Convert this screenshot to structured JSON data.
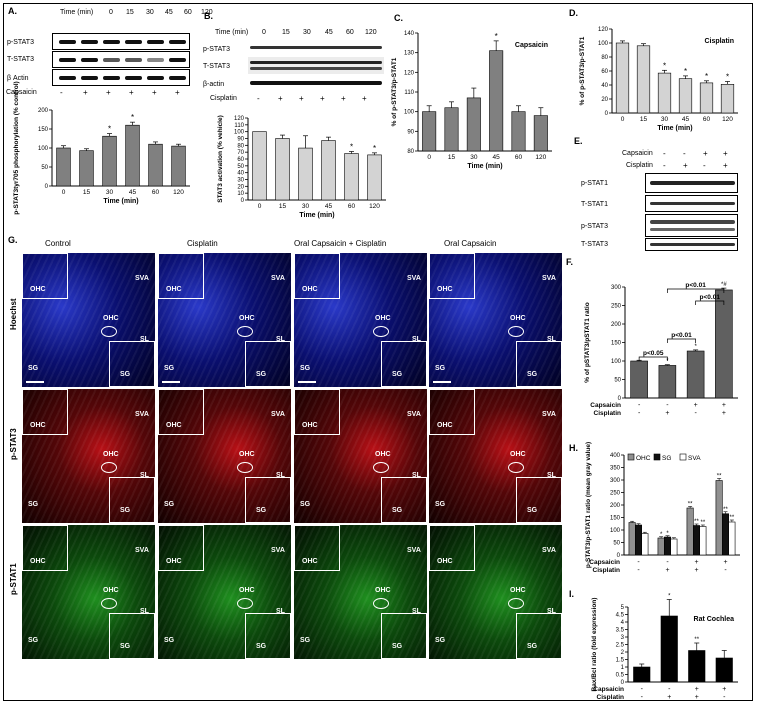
{
  "panel_labels": {
    "A": "A.",
    "B": "B.",
    "C": "C.",
    "D": "D.",
    "E": "E.",
    "F": "F.",
    "G": "G.",
    "H": "H.",
    "I": "I."
  },
  "blot_labels": {
    "time_min": "Time (min)",
    "a_rows": [
      "p-STAT3",
      "T-STAT3",
      "β Actin",
      "Capsaicin"
    ],
    "b_rows": [
      "p-STAT3",
      "T-STAT3",
      "β-actin",
      "Cisplatin"
    ],
    "e_rows": [
      "p-STAT1",
      "T-STAT1",
      "p-STAT3",
      "T-STAT3"
    ],
    "e_cond": [
      "Capsaicin",
      "Cisplatin"
    ]
  },
  "time_points": [
    "0",
    "15",
    "30",
    "45",
    "60",
    "120"
  ],
  "signs": {
    "a": [
      "-",
      "+",
      "+",
      "+",
      "+",
      "+"
    ],
    "b": [
      "-",
      "+",
      "+",
      "+",
      "+",
      "+"
    ],
    "e_caps": [
      "-",
      "-",
      "+",
      "+"
    ],
    "e_cis": [
      "-",
      "+",
      "-",
      "+"
    ]
  },
  "micro": {
    "columns": [
      "Control",
      "Cisplatin",
      "Oral Capsaicin + Cisplatin",
      "Oral Capsaicin"
    ],
    "rows": [
      "Hoechst",
      "p-STAT3",
      "p-STAT1"
    ],
    "labels": {
      "ohc": "OHC",
      "sva": "SVA",
      "sl": "SL",
      "sg": "SG"
    }
  },
  "chart_data": [
    {
      "id": "A",
      "type": "bar",
      "categories": [
        "0",
        "15",
        "30",
        "45",
        "60",
        "120"
      ],
      "values": [
        100,
        93,
        131,
        160,
        110,
        105
      ],
      "errors": [
        6,
        5,
        7,
        8,
        6,
        5
      ],
      "ylabel": "p-STAT3tyr705 phosphorylation (% control)",
      "xlabel": "Time (min)",
      "ylim": [
        0,
        200
      ],
      "yticks": [
        0,
        50,
        100,
        150,
        200
      ],
      "stars": [
        "",
        "",
        "*",
        "*",
        "",
        ""
      ],
      "color": "#808080"
    },
    {
      "id": "B",
      "type": "bar",
      "categories": [
        "0",
        "15",
        "30",
        "45",
        "60",
        "120"
      ],
      "values": [
        100,
        90,
        76,
        87,
        68,
        66
      ],
      "errors": [
        0,
        5,
        18,
        5,
        3,
        3
      ],
      "ylabel": "STAT3 activation (% vehicle)",
      "xlabel": "Time (min)",
      "ylim": [
        0,
        120
      ],
      "yticks": [
        0,
        10,
        20,
        30,
        40,
        50,
        60,
        70,
        80,
        90,
        100,
        110,
        120
      ],
      "stars": [
        "",
        "",
        "",
        "",
        "*",
        "*"
      ],
      "color": "#d3d3d3"
    },
    {
      "id": "C",
      "type": "bar",
      "categories": [
        "0",
        "15",
        "30",
        "45",
        "60",
        "120"
      ],
      "values": [
        100,
        102,
        107,
        131,
        100,
        98
      ],
      "errors": [
        3,
        3,
        5,
        5,
        3,
        4
      ],
      "ylabel": "% of p-STAT3/p-STAT1",
      "xlabel": "Time (min)",
      "title": "Capsaicin",
      "ylim": [
        80,
        140
      ],
      "yticks": [
        80,
        90,
        100,
        110,
        120,
        130,
        140
      ],
      "stars": [
        "",
        "",
        "",
        "*",
        "",
        ""
      ],
      "color": "#808080"
    },
    {
      "id": "D",
      "type": "bar",
      "categories": [
        "0",
        "15",
        "30",
        "45",
        "60",
        "120"
      ],
      "values": [
        100,
        96,
        57,
        49,
        43,
        41
      ],
      "errors": [
        3,
        3,
        4,
        4,
        3,
        4
      ],
      "ylabel": "% of p-STAT3/p-STAT1",
      "xlabel": "Time (min)",
      "title": "Cisplatin",
      "ylim": [
        0,
        120
      ],
      "yticks": [
        0,
        20,
        40,
        60,
        80,
        100,
        120
      ],
      "stars": [
        "",
        "",
        "*",
        "*",
        "*",
        "*"
      ],
      "color": "#d3d3d3"
    },
    {
      "id": "F",
      "type": "bar",
      "categories": [
        "1",
        "2",
        "3",
        "4"
      ],
      "values": [
        100,
        88,
        127,
        292
      ],
      "errors": [
        2,
        2,
        3,
        5
      ],
      "ylabel": "% of pSTAT3/pSTAT1 ratio",
      "ylim": [
        0,
        300
      ],
      "yticks": [
        0,
        50,
        100,
        150,
        200,
        250,
        300
      ],
      "stars": [
        "",
        "*",
        "*",
        "*#"
      ],
      "color": "#606060",
      "brackets": [
        "p<0.05",
        "p<0.01",
        "p<0.01",
        "p<0.01"
      ],
      "conditions": {
        "Capsaicin": [
          "-",
          "-",
          "+",
          "+"
        ],
        "Cisplatin": [
          "-",
          "+",
          "-",
          "+"
        ]
      }
    },
    {
      "id": "H",
      "type": "bar",
      "categories": [
        "1",
        "2",
        "3",
        "4"
      ],
      "series": [
        {
          "name": "OHC",
          "values": [
            130,
            68,
            188,
            298
          ],
          "color": "#909090"
        },
        {
          "name": "SG",
          "values": [
            120,
            72,
            118,
            165
          ],
          "color": "#111111"
        },
        {
          "name": "SVA",
          "values": [
            86,
            64,
            114,
            132
          ],
          "color": "#ffffff"
        }
      ],
      "errors": [
        5,
        5,
        6,
        8
      ],
      "ylabel": "p-STAT3/p-STAT1 ratio (mean gray value)",
      "ylim": [
        0,
        400
      ],
      "yticks": [
        0,
        50,
        100,
        150,
        200,
        250,
        300,
        350,
        400
      ],
      "stars": [
        [
          "",
          "",
          ""
        ],
        [
          "*",
          "*",
          ""
        ],
        [
          "**",
          "**",
          "**"
        ],
        [
          "**",
          "**",
          "**"
        ]
      ],
      "conditions": {
        "Capsaicin": [
          "-",
          "-",
          "+",
          "+"
        ],
        "Cisplatin": [
          "-",
          "+",
          "+",
          "-"
        ]
      }
    },
    {
      "id": "I",
      "type": "bar",
      "categories": [
        "1",
        "2",
        "3",
        "4"
      ],
      "values": [
        1.0,
        4.4,
        2.1,
        1.6
      ],
      "errors": [
        0.2,
        1.1,
        0.5,
        0.5
      ],
      "ylabel": "Bax/Bcl ratio (fold expression)",
      "title": "Rat Cochlea",
      "ylim": [
        0,
        5
      ],
      "yticks": [
        0,
        0.5,
        1,
        1.5,
        2,
        2.5,
        3,
        3.5,
        4,
        4.5,
        5
      ],
      "stars": [
        "",
        "*",
        "**",
        ""
      ],
      "color": "#000000",
      "conditions": {
        "Capsaicin": [
          "-",
          "-",
          "+",
          "+"
        ],
        "Cisplatin": [
          "-",
          "+",
          "+",
          "-"
        ]
      }
    }
  ]
}
